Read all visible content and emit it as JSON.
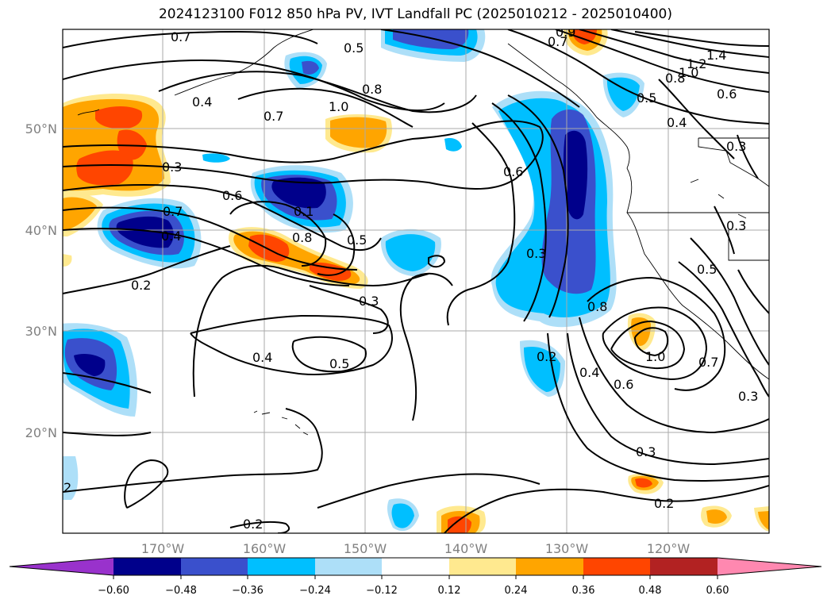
{
  "title": "2024123100 F012 850 hPa PV, IVT Landfall PC (2025010212 - 2025010400)",
  "colors": {
    "neg_ext": "#9932CC",
    "neg5": "#00008B",
    "neg4": "#3A50CC",
    "neg3": "#00BFFF",
    "neg2": "#ADDFF8",
    "zero": "#FFFFFF",
    "pos1": "#FFE98F",
    "pos2": "#FFA500",
    "pos3": "#FF4500",
    "pos4": "#B22222",
    "pos_ext": "#FF88B0"
  },
  "lat_labels": [
    "50°N",
    "40°N",
    "30°N",
    "20°N"
  ],
  "lon_labels": [
    "170°W",
    "160°W",
    "150°W",
    "140°W",
    "130°W",
    "120°W"
  ],
  "colorbar_ticks": [
    "−0.60",
    "−0.48",
    "−0.36",
    "−0.24",
    "−0.12",
    "0.12",
    "0.24",
    "0.36",
    "0.48",
    "0.60"
  ],
  "contour_labels": [
    "0.7",
    "0.5",
    "0.7",
    "0.9",
    "1.4",
    "1.2",
    "1.0",
    "0.8",
    "0.6",
    "0.4",
    "0.8",
    "0.7",
    "1.0",
    "0.5",
    "0.4",
    "0.3",
    "0.6",
    "0.3",
    "0.6",
    "0.1",
    "0.7",
    "0.8",
    "0.4",
    "0.5",
    "0.3",
    "0.3",
    "0.2",
    "0.3",
    "0.5",
    "0.8",
    "0.4",
    "0.5",
    "0.2",
    "1.0",
    "0.7",
    "0.4",
    "0.6",
    "0.3",
    "0.3",
    "0.2",
    "0.2",
    "2"
  ]
}
